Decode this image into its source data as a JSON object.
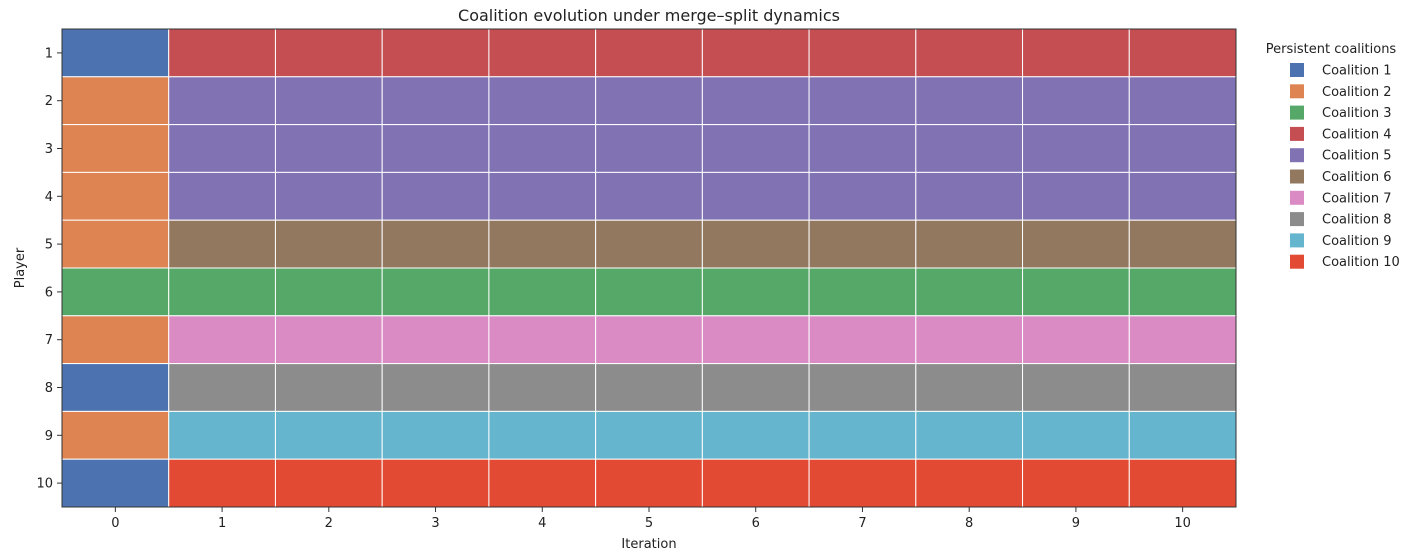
{
  "chart_data": {
    "type": "heatmap",
    "title": "Coalition evolution under merge–split dynamics",
    "xlabel": "Iteration",
    "ylabel": "Player",
    "x": [
      0,
      1,
      2,
      3,
      4,
      5,
      6,
      7,
      8,
      9,
      10
    ],
    "x_tick_labels": [
      "0",
      "1",
      "2",
      "3",
      "4",
      "5",
      "6",
      "7",
      "8",
      "9",
      "10"
    ],
    "y": [
      1,
      2,
      3,
      4,
      5,
      6,
      7,
      8,
      9,
      10
    ],
    "y_tick_labels": [
      "1",
      "2",
      "3",
      "4",
      "5",
      "6",
      "7",
      "8",
      "9",
      "10"
    ],
    "legend": {
      "title": "Persistent coalitions",
      "placement": "right",
      "entries": [
        {
          "id": 1,
          "label": "Coalition 1",
          "color": "#4c72b0"
        },
        {
          "id": 2,
          "label": "Coalition 2",
          "color": "#dd8452"
        },
        {
          "id": 3,
          "label": "Coalition 3",
          "color": "#55a868"
        },
        {
          "id": 4,
          "label": "Coalition 4",
          "color": "#c44e52"
        },
        {
          "id": 5,
          "label": "Coalition 5",
          "color": "#8172b3"
        },
        {
          "id": 6,
          "label": "Coalition 6",
          "color": "#937860"
        },
        {
          "id": 7,
          "label": "Coalition 7",
          "color": "#da8bc3"
        },
        {
          "id": 8,
          "label": "Coalition 8",
          "color": "#8c8c8c"
        },
        {
          "id": 9,
          "label": "Coalition 9",
          "color": "#64b5cd"
        },
        {
          "id": 10,
          "label": "Coalition 10",
          "color": "#e24a33"
        }
      ]
    },
    "assignments": [
      [
        1,
        4,
        4,
        4,
        4,
        4,
        4,
        4,
        4,
        4,
        4
      ],
      [
        2,
        5,
        5,
        5,
        5,
        5,
        5,
        5,
        5,
        5,
        5
      ],
      [
        2,
        5,
        5,
        5,
        5,
        5,
        5,
        5,
        5,
        5,
        5
      ],
      [
        2,
        5,
        5,
        5,
        5,
        5,
        5,
        5,
        5,
        5,
        5
      ],
      [
        2,
        6,
        6,
        6,
        6,
        6,
        6,
        6,
        6,
        6,
        6
      ],
      [
        3,
        3,
        3,
        3,
        3,
        3,
        3,
        3,
        3,
        3,
        3
      ],
      [
        2,
        7,
        7,
        7,
        7,
        7,
        7,
        7,
        7,
        7,
        7
      ],
      [
        1,
        8,
        8,
        8,
        8,
        8,
        8,
        8,
        8,
        8,
        8
      ],
      [
        2,
        9,
        9,
        9,
        9,
        9,
        9,
        9,
        9,
        9,
        9
      ],
      [
        1,
        10,
        10,
        10,
        10,
        10,
        10,
        10,
        10,
        10,
        10
      ]
    ]
  }
}
